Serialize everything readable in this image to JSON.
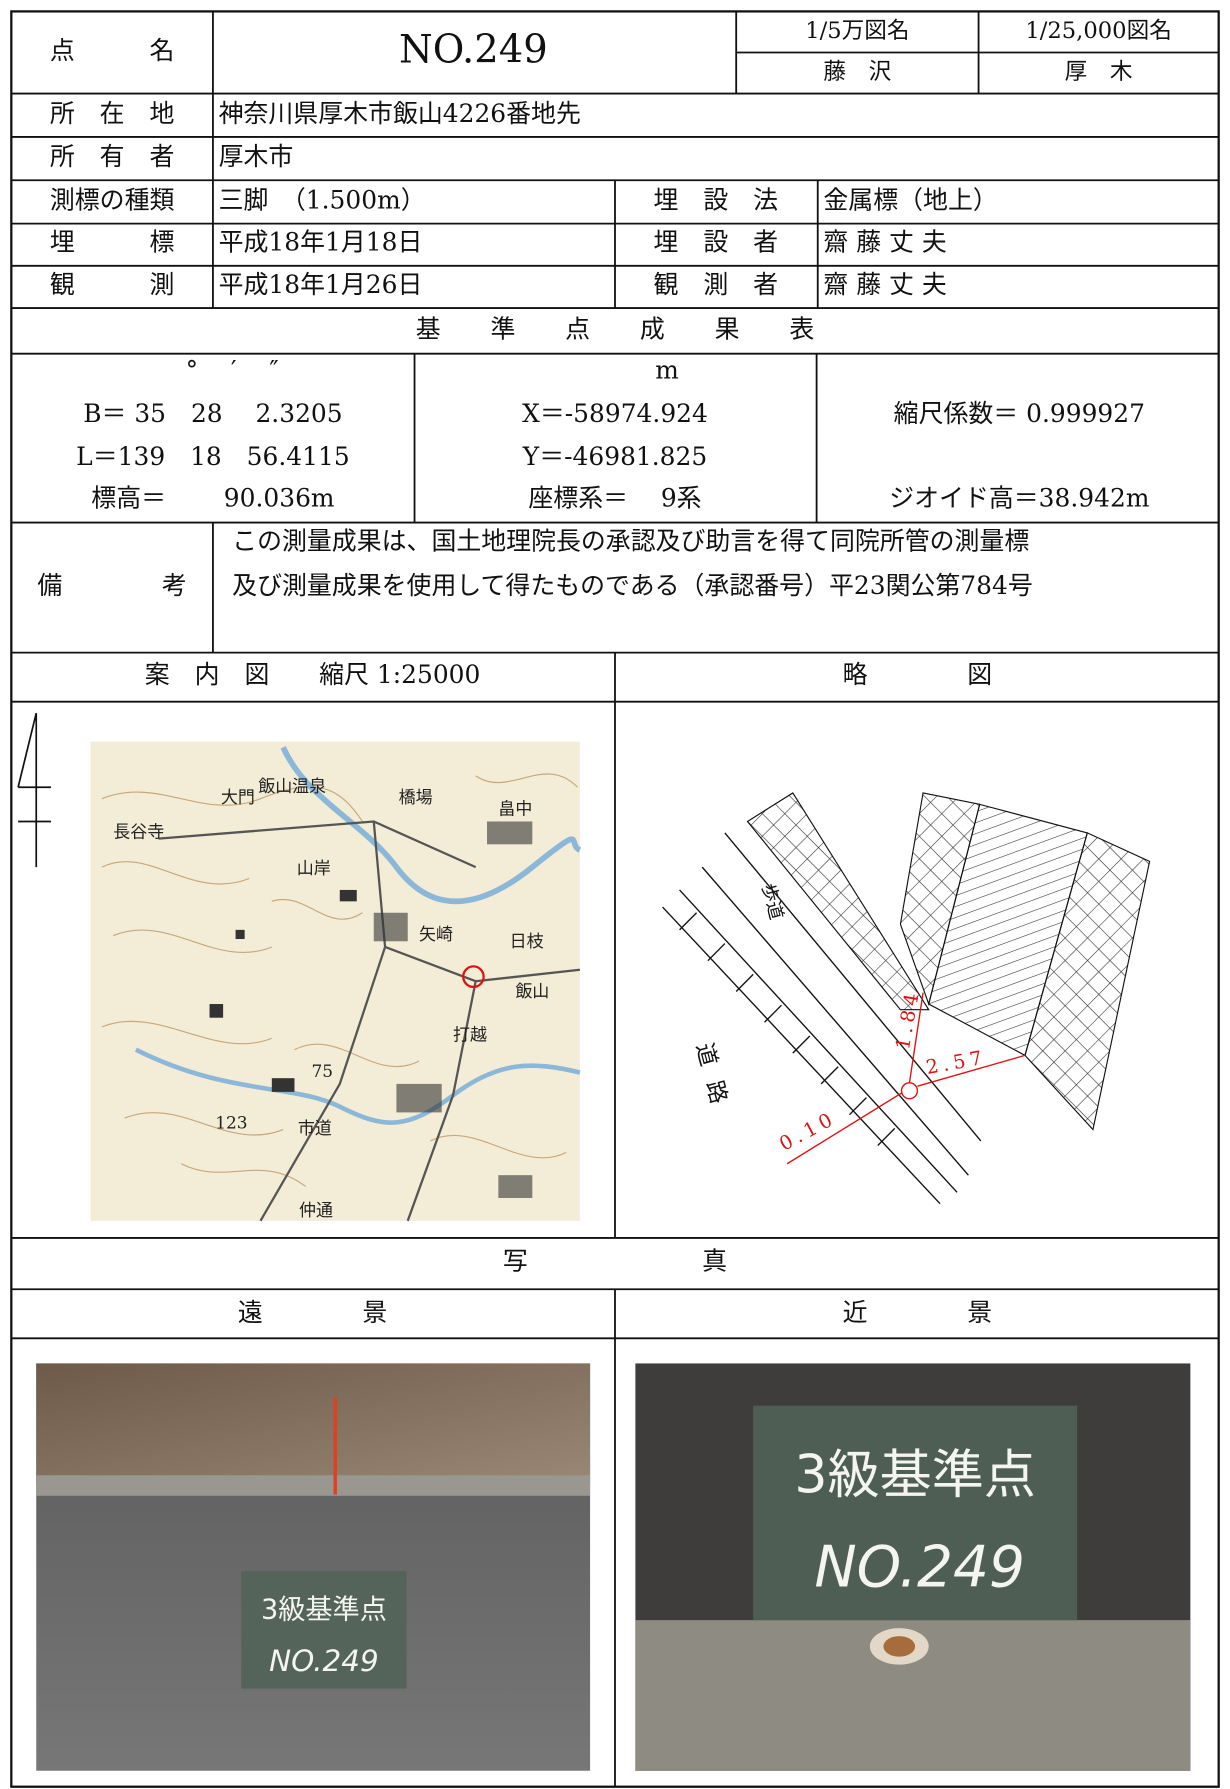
{
  "header": {
    "point_name_label": "点　　　名",
    "point_name": "NO.249",
    "map50k_label": "1/5万図名",
    "map50k": "藤　沢",
    "map25k_label": "1/25,000図名",
    "map25k": "厚　木"
  },
  "info": {
    "location_label": "所　在　地",
    "location": "神奈川県厚木市飯山4226番地先",
    "owner_label": "所　有　者",
    "owner": "厚木市",
    "marker_type_label": "測標の種類",
    "marker_type": "三脚　（1.500m）",
    "burial_method_label": "埋　設　法",
    "burial_method": "金属標（地上）",
    "burial_label": "埋　　　標",
    "burial_date": "平成18年1月18日",
    "burier_label": "埋　設　者",
    "burier": "齋 藤 丈 夫",
    "observation_label": "観　　　測",
    "observation_date": "平成18年1月26日",
    "observer_label": "観　測　者",
    "observer": "齋 藤 丈 夫"
  },
  "results": {
    "title": "基　　準　　点　　成　　果　　表",
    "angle_units": "°　 ′　 ″",
    "latitude": "B＝ 35　28　 2.3205",
    "longitude": "L＝139　18　56.4115",
    "elevation": "標高＝　　 90.036m",
    "meter_unit": "m",
    "x": "X＝-58974.924",
    "y": "Y＝-46981.825",
    "coordinate_system": "座標系＝　 9系",
    "scale_factor": "縮尺係数＝ 0.999927",
    "geoid_height": "ジオイド高＝38.942m"
  },
  "remarks": {
    "label": "備　　　　考",
    "lines": [
      "この測量成果は、国土地理院長の承認及び助言を得て同院所管の測量標",
      "及び測量成果を使用して得たものである（承認番号）平23関公第784号"
    ]
  },
  "guide_map": {
    "title": "案　内　図　　縮尺 1:25000",
    "labels": [
      "大門",
      "飯山温泉",
      "橋場",
      "畠中",
      "長谷寺",
      "山岸",
      "矢崎",
      "日枝",
      "飯山",
      "打越",
      "市道",
      "仲通",
      "75",
      "123"
    ]
  },
  "sketch": {
    "title": "略　　　　図",
    "sidewalk": "歩道",
    "road": "道路",
    "dist_1": "1.84",
    "dist_2": "2.57",
    "dist_3": "0.10"
  },
  "photos": {
    "title": "写　　　　　　　真",
    "far_label": "遠　　　　景",
    "near_label": "近　　　　景",
    "board_line1": "3級基準点",
    "board_line2": "NO.249"
  }
}
